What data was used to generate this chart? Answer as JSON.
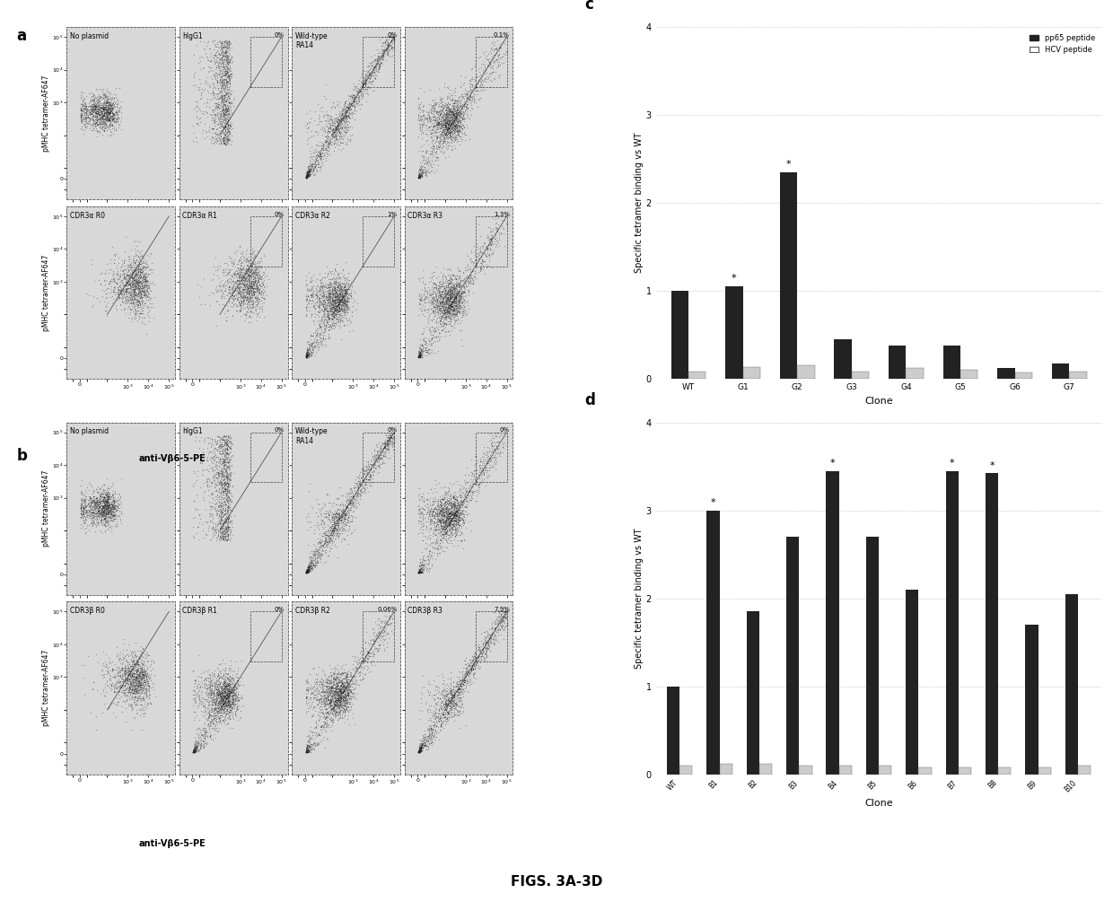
{
  "panel_c": {
    "clones": [
      "WT",
      "G1",
      "G2",
      "G3",
      "G4",
      "G5",
      "G6",
      "G7"
    ],
    "pp65": [
      1.0,
      1.05,
      2.35,
      0.45,
      0.38,
      0.38,
      0.12,
      0.18
    ],
    "hcv": [
      0.08,
      0.13,
      0.15,
      0.08,
      0.12,
      0.1,
      0.07,
      0.08
    ],
    "starred": [
      false,
      true,
      true,
      false,
      false,
      false,
      false,
      false
    ],
    "ylabel": "Specific tetramer binding vs WT",
    "xlabel": "Clone",
    "ylim": [
      0,
      4
    ],
    "yticks": [
      0,
      1,
      2,
      3,
      4
    ],
    "legend_pp65": "pp65 peptide",
    "legend_hcv": "HCV peptide"
  },
  "panel_d": {
    "clones": [
      "WT",
      "B1",
      "B2",
      "B3",
      "B4",
      "B5",
      "B6",
      "B7",
      "B8",
      "B9",
      "B10"
    ],
    "pp65": [
      1.0,
      3.0,
      1.85,
      2.7,
      3.45,
      2.7,
      2.1,
      3.45,
      3.42,
      1.7,
      2.05
    ],
    "hcv": [
      0.1,
      0.12,
      0.12,
      0.1,
      0.1,
      0.1,
      0.08,
      0.08,
      0.08,
      0.08,
      0.1
    ],
    "starred": [
      false,
      true,
      false,
      false,
      true,
      false,
      false,
      true,
      true,
      false,
      false
    ],
    "ylabel": "Specific tetramer binding vs WT",
    "xlabel": "Clone",
    "ylim": [
      0,
      4
    ],
    "yticks": [
      0,
      1,
      2,
      3,
      4
    ]
  },
  "flow_a_top_labels": [
    "No plasmid",
    "hIgG1",
    "Wild-type\nRA14",
    ""
  ],
  "flow_a_top_pcts": [
    "",
    "0%",
    "0%",
    "0.1%"
  ],
  "flow_a_bot_labels": [
    "CDR3α R0",
    "CDR3α R1",
    "CDR3α R2",
    "CDR3α R3"
  ],
  "flow_a_bot_pcts": [
    "",
    "0%",
    "1%",
    "1.3%"
  ],
  "flow_b_top_labels": [
    "No plasmid",
    "hIgG1",
    "Wild-type\nRA14",
    ""
  ],
  "flow_b_top_pcts": [
    "",
    "0%",
    "0%",
    "0%"
  ],
  "flow_b_bot_labels": [
    "CDR3β R0",
    "CDR3β R1",
    "CDR3β R2",
    "CDR3β R3"
  ],
  "flow_b_bot_pcts": [
    "",
    "0%",
    "0.06%",
    "7.9%"
  ],
  "ylabel_flow": "pMHC tetramer-AF647",
  "xlabel_flow": "anti-Vβ6-5-PE",
  "figure_title": "FIGS. 3A-3D",
  "bg_color": "#d8d8d8",
  "bar_color_pp65": "#222222",
  "bar_color_hcv": "#cccccc",
  "dot_color": "#222222",
  "grid_color": "#aaaaaa"
}
